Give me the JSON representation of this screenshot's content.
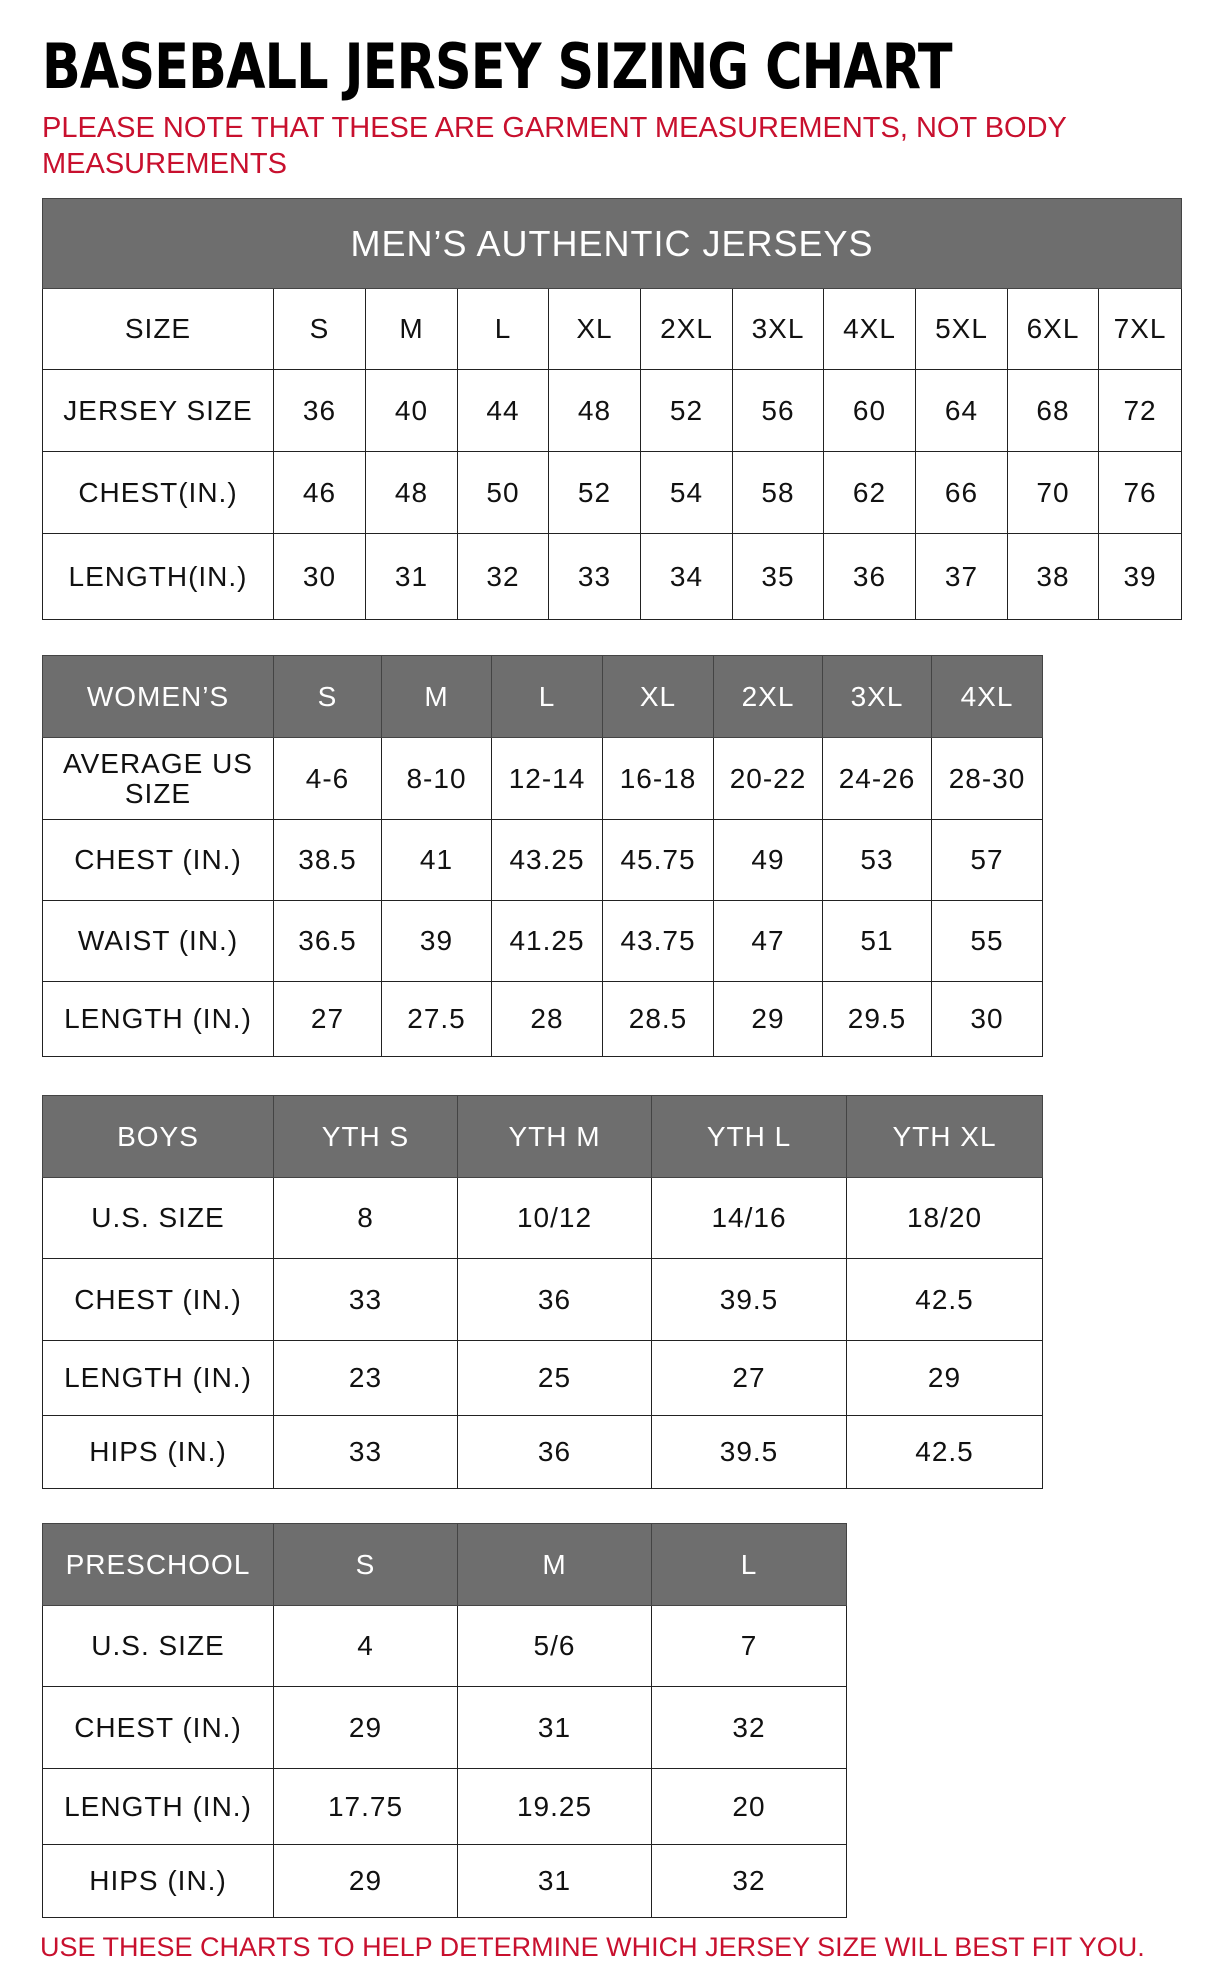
{
  "title": "BASEBALL JERSEY SIZING CHART",
  "note": "PLEASE NOTE THAT THESE ARE GARMENT MEASUREMENTS, NOT BODY MEASUREMENTS",
  "footer": "USE THESE CHARTS TO HELP DETERMINE WHICH JERSEY SIZE WILL BEST FIT YOU.",
  "colors": {
    "header_bg": "#6e6e6e",
    "accent_red": "#c8102e"
  },
  "tables": [
    {
      "caption": "MEN’S AUTHENTIC JERSEYS",
      "header": [
        "SIZE",
        "S",
        "M",
        "L",
        "XL",
        "2XL",
        "3XL",
        "4XL",
        "5XL",
        "6XL",
        "7XL"
      ],
      "header_style": "plain",
      "rows": [
        [
          "JERSEY SIZE",
          "36",
          "40",
          "44",
          "48",
          "52",
          "56",
          "60",
          "64",
          "68",
          "72"
        ],
        [
          "CHEST(IN.)",
          "46",
          "48",
          "50",
          "52",
          "54",
          "58",
          "62",
          "66",
          "70",
          "76"
        ],
        [
          "LENGTH(IN.)",
          "30",
          "31",
          "32",
          "33",
          "34",
          "35",
          "36",
          "37",
          "38",
          "39"
        ]
      ]
    },
    {
      "header": [
        "WOMEN’S",
        "S",
        "M",
        "L",
        "XL",
        "2XL",
        "3XL",
        "4XL"
      ],
      "header_style": "gray",
      "rows": [
        [
          "AVERAGE US SIZE",
          "4-6",
          "8-10",
          "12-14",
          "16-18",
          "20-22",
          "24-26",
          "28-30"
        ],
        [
          "CHEST (IN.)",
          "38.5",
          "41",
          "43.25",
          "45.75",
          "49",
          "53",
          "57"
        ],
        [
          "WAIST (IN.)",
          "36.5",
          "39",
          "41.25",
          "43.75",
          "47",
          "51",
          "55"
        ],
        [
          "LENGTH (IN.)",
          "27",
          "27.5",
          "28",
          "28.5",
          "29",
          "29.5",
          "30"
        ]
      ]
    },
    {
      "header": [
        "BOYS",
        "YTH S",
        "YTH M",
        "YTH L",
        "YTH XL"
      ],
      "header_style": "gray",
      "rows": [
        [
          "U.S. SIZE",
          "8",
          "10/12",
          "14/16",
          "18/20"
        ],
        [
          "CHEST (IN.)",
          "33",
          "36",
          "39.5",
          "42.5"
        ],
        [
          "LENGTH (IN.)",
          "23",
          "25",
          "27",
          "29"
        ],
        [
          "HIPS (IN.)",
          "33",
          "36",
          "39.5",
          "42.5"
        ]
      ]
    },
    {
      "header": [
        "PRESCHOOL",
        "S",
        "M",
        "L"
      ],
      "header_style": "gray",
      "rows": [
        [
          "U.S. SIZE",
          "4",
          "5/6",
          "7"
        ],
        [
          "CHEST (IN.)",
          "29",
          "31",
          "32"
        ],
        [
          "LENGTH (IN.)",
          "17.75",
          "19.25",
          "20"
        ],
        [
          "HIPS (IN.)",
          "29",
          "31",
          "32"
        ]
      ]
    }
  ]
}
